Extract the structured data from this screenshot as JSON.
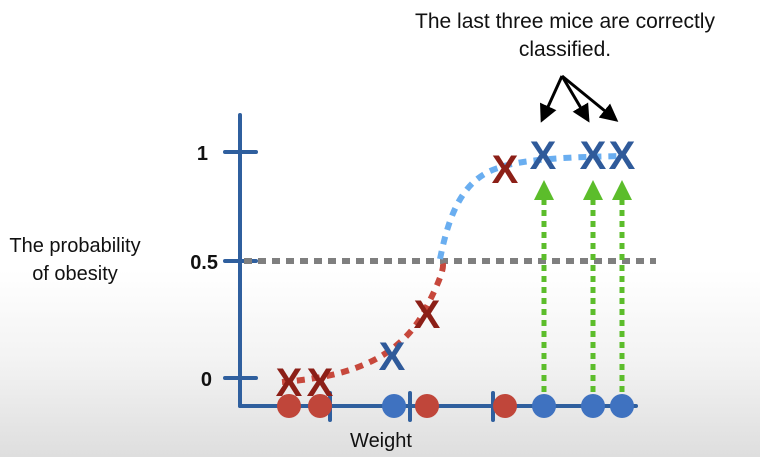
{
  "annotation": {
    "line1": "The last three mice are correctly",
    "line2": "classified."
  },
  "y_axis": {
    "label_line1": "The probability",
    "label_line2": "of obesity",
    "ticks": [
      "1",
      "0.5",
      "0"
    ]
  },
  "x_axis": {
    "label": "Weight"
  },
  "marker_symbol": "X",
  "colors": {
    "axis": "#2f5f9e",
    "red": "#c0463a",
    "blue": "#3f72c0",
    "x_red": "#8c1f17",
    "x_blue": "#2f5a9a",
    "curve_red": "#c7483c",
    "curve_blue": "#6aaef0",
    "threshold": "#7f7f7f",
    "arrow_green": "#5cbd2b",
    "arrow_black": "#000000"
  },
  "threshold_value": 0.5,
  "mice": [
    {
      "weight": 1,
      "obese": false,
      "predicted": 0.01
    },
    {
      "weight": 2,
      "obese": false,
      "predicted": 0.01
    },
    {
      "weight": 5,
      "obese": true,
      "predicted": 0.1
    },
    {
      "weight": 6,
      "obese": false,
      "predicted": 0.3
    },
    {
      "weight": 8,
      "obese": false,
      "predicted": 0.97
    },
    {
      "weight": 9,
      "obese": true,
      "predicted": 1.0
    },
    {
      "weight": 11,
      "obese": true,
      "predicted": 1.0
    },
    {
      "weight": 12,
      "obese": true,
      "predicted": 1.0
    }
  ],
  "correctly_classified_highlight": [
    5,
    6,
    7
  ]
}
